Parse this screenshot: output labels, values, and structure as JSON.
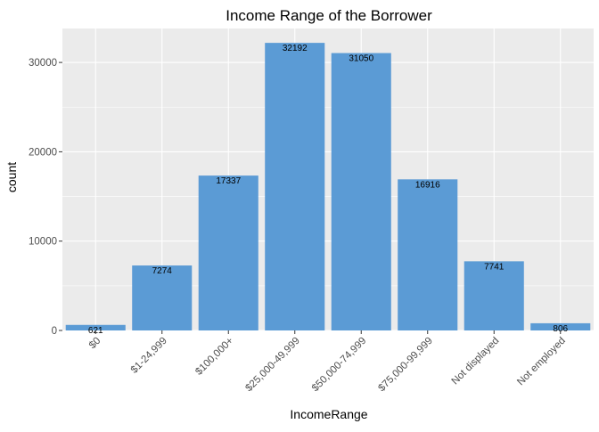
{
  "chart_data": {
    "type": "bar",
    "title": "Income Range of the Borrower",
    "xlabel": "IncomeRange",
    "ylabel": "count",
    "categories": [
      "$0",
      "$1-24,999",
      "$100,000+",
      "$25,000-49,999",
      "$50,000-74,999",
      "$75,000-99,999",
      "Not displayed",
      "Not employed"
    ],
    "values": [
      621,
      7274,
      17337,
      32192,
      31050,
      16916,
      7741,
      806
    ],
    "ylim": [
      0,
      33800
    ],
    "yticks": [
      0,
      10000,
      20000,
      30000
    ],
    "grid": true,
    "colors": {
      "bar": "#5b9bd5",
      "panel": "#ebebeb",
      "grid_major": "#ffffff",
      "axis_text": "#4d4d4d"
    }
  }
}
